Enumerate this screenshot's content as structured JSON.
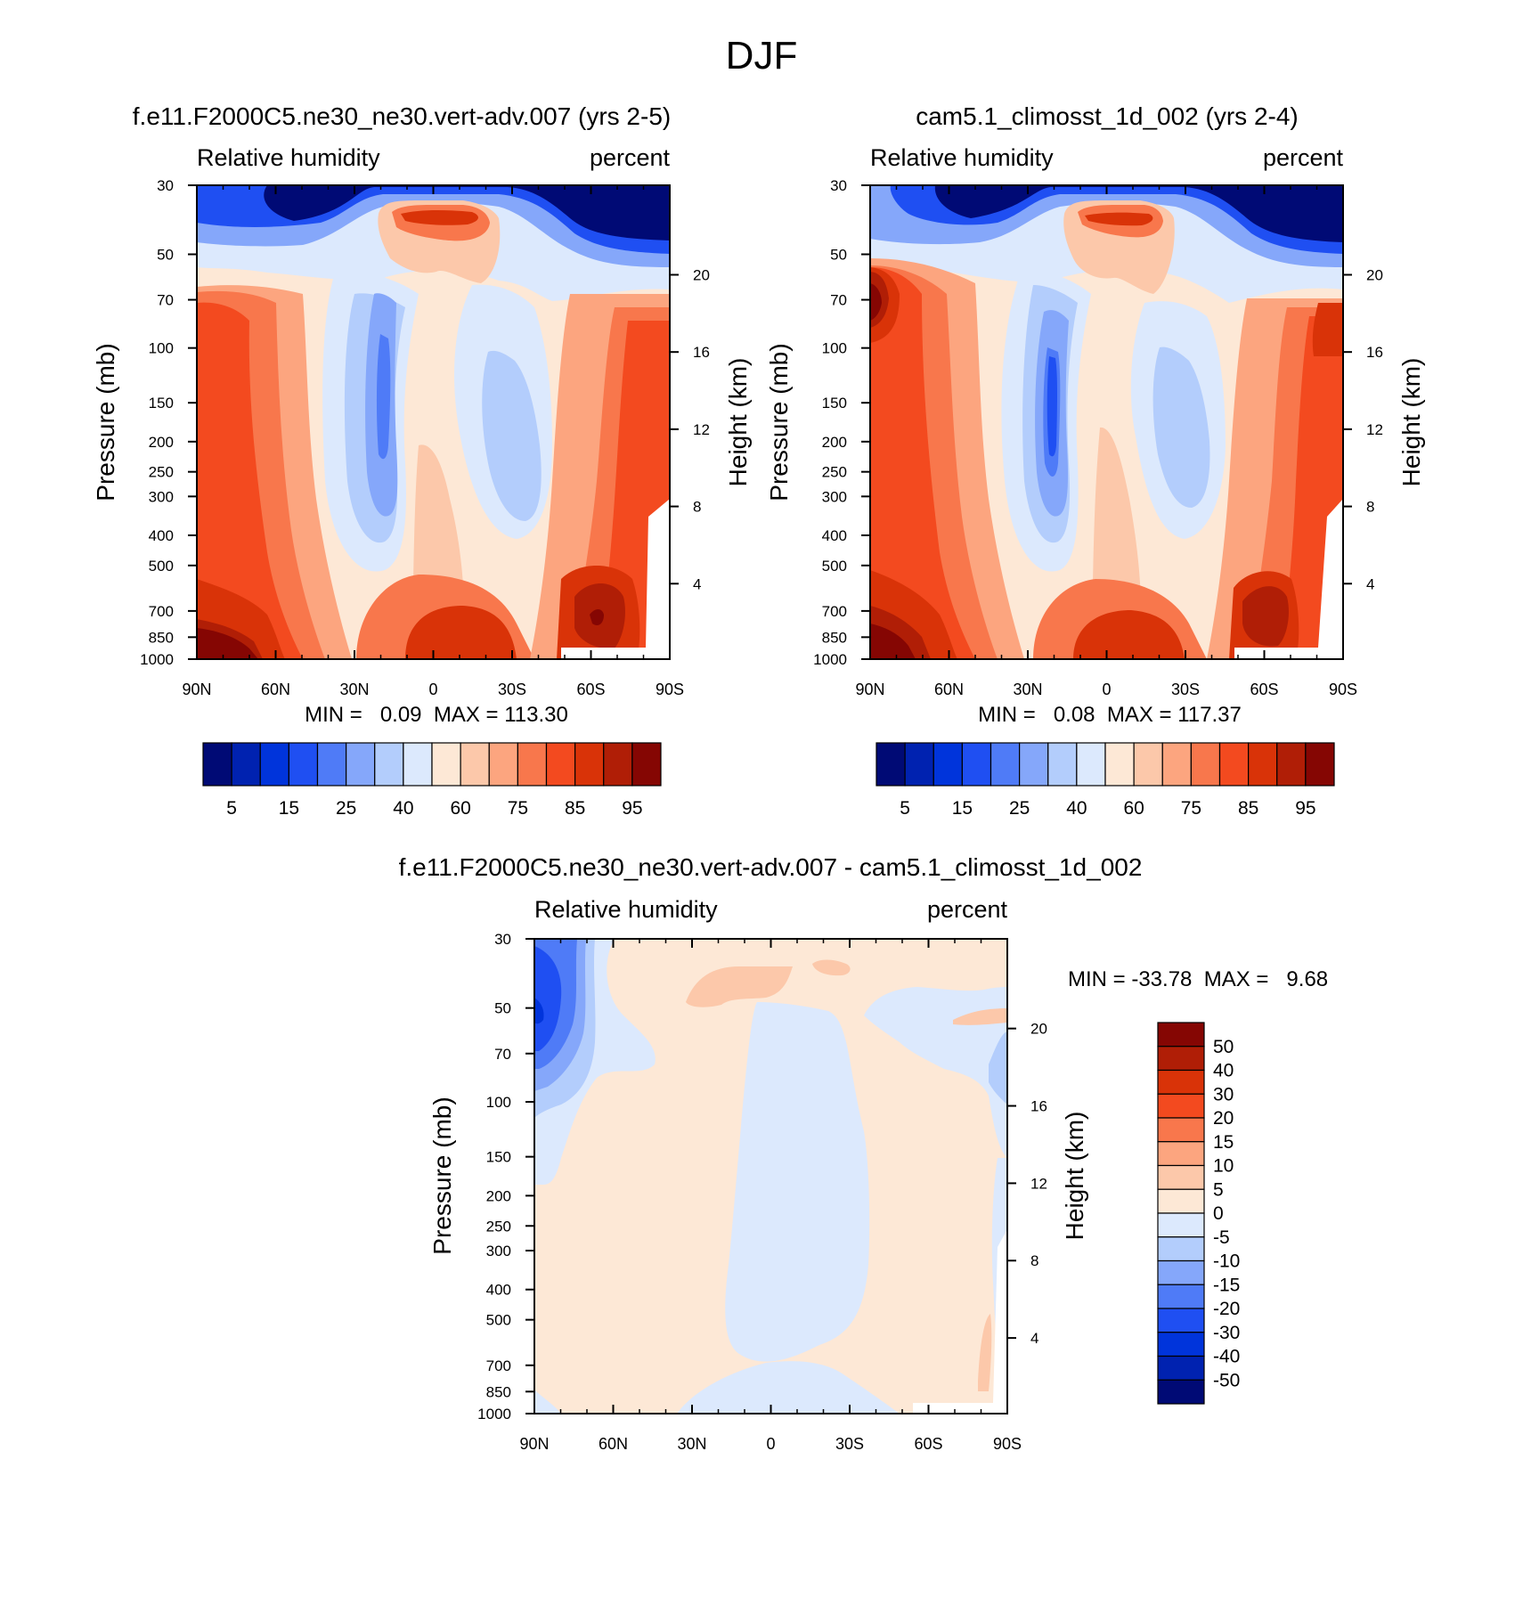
{
  "title": "DJF",
  "palette": {
    "rh": [
      "#000a75",
      "#0022b0",
      "#0034db",
      "#1f4ff2",
      "#4f7bf7",
      "#85a7fa",
      "#b3cdfc",
      "#dce9fd",
      "#fde8d6",
      "#fcc8aa",
      "#fca57f",
      "#f8774c",
      "#f34a1f",
      "#d93308",
      "#b01e06",
      "#850603"
    ],
    "diff": [
      "#000a75",
      "#0022b0",
      "#0034db",
      "#1f4ff2",
      "#4f7bf7",
      "#85a7fa",
      "#b3cdfc",
      "#dce9fd",
      "#fde8d6",
      "#fcc8aa",
      "#fca57f",
      "#f8774c",
      "#f34a1f",
      "#d93308",
      "#b01e06",
      "#850603"
    ]
  },
  "chart_data": [
    {
      "type": "contour",
      "title": "f.e11.F2000C5.ne30_ne30.vert-adv.007 (yrs 2-5)",
      "left_label": "Relative humidity",
      "right_label": "percent",
      "ylabel": "Pressure (mb)",
      "y2label": "Height (km)",
      "xticks": [
        "90N",
        "60N",
        "30N",
        "0",
        "30S",
        "60S",
        "90S"
      ],
      "yticks": [
        "30",
        "50",
        "70",
        "100",
        "150",
        "200",
        "250",
        "300",
        "400",
        "500",
        "700",
        "850",
        "1000"
      ],
      "y2ticks": [
        "20",
        "16",
        "12",
        "8",
        "4"
      ],
      "stats": "MIN =   0.09  MAX = 113.30",
      "colorbar_labels": [
        "5",
        "15",
        "25",
        "40",
        "60",
        "75",
        "85",
        "95"
      ],
      "ylim": [
        1000,
        30
      ]
    },
    {
      "type": "contour",
      "title": "cam5.1_climosst_1d_002 (yrs 2-4)",
      "left_label": "Relative humidity",
      "right_label": "percent",
      "ylabel": "Pressure (mb)",
      "y2label": "Height (km)",
      "xticks": [
        "90N",
        "60N",
        "30N",
        "0",
        "30S",
        "60S",
        "90S"
      ],
      "yticks": [
        "30",
        "50",
        "70",
        "100",
        "150",
        "200",
        "250",
        "300",
        "400",
        "500",
        "700",
        "850",
        "1000"
      ],
      "y2ticks": [
        "20",
        "16",
        "12",
        "8",
        "4"
      ],
      "stats": "MIN =   0.08  MAX = 117.37",
      "colorbar_labels": [
        "5",
        "15",
        "25",
        "40",
        "60",
        "75",
        "85",
        "95"
      ],
      "ylim": [
        1000,
        30
      ]
    },
    {
      "type": "contour",
      "title": "f.e11.F2000C5.ne30_ne30.vert-adv.007 - cam5.1_climosst_1d_002",
      "left_label": "Relative humidity",
      "right_label": "percent",
      "ylabel": "Pressure (mb)",
      "y2label": "Height (km)",
      "xticks": [
        "90N",
        "60N",
        "30N",
        "0",
        "30S",
        "60S",
        "90S"
      ],
      "yticks": [
        "30",
        "50",
        "70",
        "100",
        "150",
        "200",
        "250",
        "300",
        "400",
        "500",
        "700",
        "850",
        "1000"
      ],
      "y2ticks": [
        "20",
        "16",
        "12",
        "8",
        "4"
      ],
      "stats": "MIN = -33.78  MAX =   9.68",
      "colorbar_labels": [
        "50",
        "40",
        "30",
        "20",
        "15",
        "10",
        "5",
        "0",
        "-5",
        "-10",
        "-15",
        "-20",
        "-30",
        "-40",
        "-50"
      ],
      "ylim": [
        1000,
        30
      ]
    }
  ]
}
